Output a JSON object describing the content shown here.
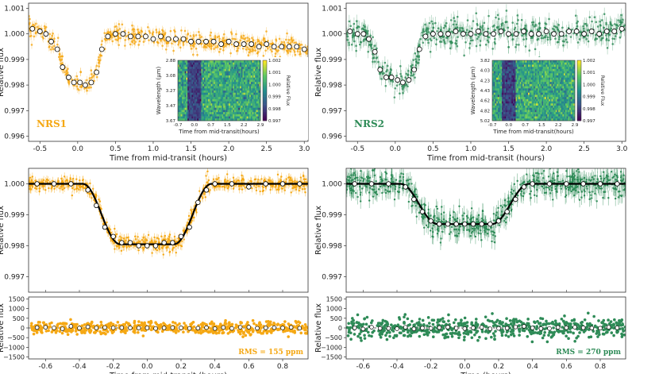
{
  "figure": {
    "colors": {
      "nrs1": "#f5a814",
      "nrs2": "#2e8b57",
      "model": "#000000",
      "binned_fill": "#ffffff",
      "binned_edge": "#000000"
    }
  },
  "chart_data": [
    {
      "id": "nrs1_white_light",
      "type": "scatter",
      "label": "NRS1",
      "xlabel": "Time from mid-transit (hours)",
      "ylabel": "Relative flux",
      "xlim": [
        -0.65,
        3.05
      ],
      "ylim": [
        0.9958,
        1.0012
      ],
      "xticks": [
        -0.5,
        0.0,
        0.5,
        1.0,
        1.5,
        2.0,
        2.5,
        3.0
      ],
      "xtick_labels": [
        "-0.5",
        "0.0",
        "0.5",
        "1.0",
        "1.5",
        "2.0",
        "2.5",
        "3.0"
      ],
      "yticks": [
        0.996,
        0.997,
        0.998,
        0.999,
        1.0,
        1.001
      ],
      "ytick_labels": [
        "0.996",
        "0.997",
        "0.998",
        "0.999",
        "1.000",
        "1.001"
      ],
      "series": [
        {
          "name": "binned",
          "x": [
            -0.6,
            -0.5,
            -0.42,
            -0.35,
            -0.27,
            -0.2,
            -0.12,
            -0.05,
            0.03,
            0.1,
            0.18,
            0.25,
            0.32,
            0.4,
            0.5,
            0.6,
            0.7,
            0.8,
            0.9,
            1.0,
            1.1,
            1.2,
            1.3,
            1.4,
            1.5,
            1.6,
            1.7,
            1.8,
            1.9,
            2.0,
            2.1,
            2.2,
            2.3,
            2.4,
            2.5,
            2.6,
            2.7,
            2.8,
            2.9,
            3.0
          ],
          "y": [
            1.0002,
            1.0001,
            1.0,
            0.9997,
            0.9994,
            0.9987,
            0.9983,
            0.9981,
            0.9981,
            0.998,
            0.9981,
            0.9985,
            0.9994,
            0.9999,
            1.0,
            1.0,
            0.9999,
            0.9999,
            0.9999,
            0.9998,
            0.9999,
            0.9998,
            0.9998,
            0.9998,
            0.9997,
            0.9997,
            0.9997,
            0.9997,
            0.9996,
            0.9997,
            0.9996,
            0.9996,
            0.9996,
            0.9995,
            0.9996,
            0.9995,
            0.9995,
            0.9995,
            0.9995,
            0.9994
          ]
        }
      ]
    },
    {
      "id": "nrs1_spectral_map",
      "type": "heatmap",
      "xlabel": "Time from mid-transit(hours)",
      "ylabel": "Wavelength (μm)",
      "colorbar_label": "Relative Flux",
      "xtick_labels": [
        "-0.7",
        "0.0",
        "0.7",
        "1.5",
        "2.2",
        "2.9"
      ],
      "ytick_labels": [
        "2.88",
        "3.08",
        "3.27",
        "3.47",
        "3.67"
      ],
      "colorbar_ticks": [
        "1.002",
        "1.001",
        "1.000",
        "0.999",
        "0.998",
        "0.997"
      ],
      "clim": [
        0.997,
        1.002
      ],
      "transit_x_range": [
        -0.3,
        0.3
      ]
    },
    {
      "id": "nrs2_white_light",
      "type": "scatter",
      "label": "NRS2",
      "xlabel": "Time from mid-transit (hours)",
      "ylabel": "Relative flux",
      "xlim": [
        -0.65,
        3.05
      ],
      "ylim": [
        0.9958,
        1.0012
      ],
      "xticks": [
        -0.5,
        0.0,
        0.5,
        1.0,
        1.5,
        2.0,
        2.5,
        3.0
      ],
      "xtick_labels": [
        "-0.5",
        "0.0",
        "0.5",
        "1.0",
        "1.5",
        "2.0",
        "2.5",
        "3.0"
      ],
      "yticks": [
        0.996,
        0.997,
        0.998,
        0.999,
        1.0,
        1.001
      ],
      "ytick_labels": [
        "0.996",
        "0.997",
        "0.998",
        "0.999",
        "1.000",
        "1.001"
      ],
      "series": [
        {
          "name": "binned",
          "x": [
            -0.6,
            -0.5,
            -0.42,
            -0.35,
            -0.27,
            -0.2,
            -0.12,
            -0.05,
            0.03,
            0.1,
            0.18,
            0.25,
            0.32,
            0.4,
            0.5,
            0.6,
            0.7,
            0.8,
            0.9,
            1.0,
            1.1,
            1.2,
            1.3,
            1.4,
            1.5,
            1.6,
            1.7,
            1.8,
            1.9,
            2.0,
            2.1,
            2.2,
            2.3,
            2.4,
            2.5,
            2.6,
            2.7,
            2.8,
            2.9,
            3.0
          ],
          "y": [
            1.0001,
            1.0,
            1.0,
            0.9998,
            0.9993,
            0.9986,
            0.9983,
            0.9983,
            0.9982,
            0.9981,
            0.9982,
            0.9986,
            0.9994,
            0.9999,
            1.0,
            1.0,
            1.0,
            1.0001,
            1.0,
            1.0,
            1.0001,
            1.0,
            1.0,
            1.0001,
            1.0,
            1.0,
            1.0001,
            1.0,
            1.0,
            1.0001,
            1.0,
            1.0,
            1.0001,
            1.0001,
            1.0,
            1.0001,
            1.0,
            1.0001,
            1.0001,
            1.0002
          ]
        }
      ]
    },
    {
      "id": "nrs2_spectral_map",
      "type": "heatmap",
      "xlabel": "Time from mid-transit(hours)",
      "ylabel": "Wavelength (μm)",
      "colorbar_label": "Relative Flux",
      "xtick_labels": [
        "-0.7",
        "0.0",
        "0.7",
        "1.5",
        "2.2",
        "2.9"
      ],
      "ytick_labels": [
        "3.82",
        "4.03",
        "4.23",
        "4.43",
        "4.62",
        "4.82",
        "5.02"
      ],
      "colorbar_ticks": [
        "1.002",
        "1.001",
        "1.000",
        "0.999",
        "0.998",
        "0.997"
      ],
      "clim": [
        0.997,
        1.002
      ],
      "transit_x_range": [
        -0.3,
        0.3
      ]
    },
    {
      "id": "nrs1_fit",
      "type": "scatter",
      "xlabel": "",
      "ylabel": "Relative flux",
      "xlim": [
        -0.7,
        0.95
      ],
      "ylim": [
        0.9965,
        1.0005
      ],
      "yticks": [
        0.997,
        0.998,
        0.999,
        1.0
      ],
      "ytick_labels": [
        "0.997",
        "0.998",
        "0.999",
        "1.000"
      ],
      "model": {
        "depth": 0.00195,
        "t_ingress_start": -0.38,
        "t_ingress_end": -0.16,
        "t_egress_start": 0.16,
        "t_egress_end": 0.38
      },
      "series": [
        {
          "name": "binned",
          "x": [
            -0.65,
            -0.55,
            -0.45,
            -0.35,
            -0.3,
            -0.25,
            -0.2,
            -0.15,
            -0.1,
            -0.05,
            0.0,
            0.05,
            0.1,
            0.15,
            0.2,
            0.25,
            0.3,
            0.35,
            0.4,
            0.5,
            0.6,
            0.7,
            0.8,
            0.9
          ],
          "y": [
            1.0,
            1.0,
            1.0,
            0.9998,
            0.9993,
            0.9986,
            0.9983,
            0.9981,
            0.9981,
            0.998,
            0.998,
            0.998,
            0.9981,
            0.9981,
            0.9983,
            0.9986,
            0.9994,
            0.9998,
            1.0,
            1.0,
            0.9999,
            1.0,
            1.0,
            1.0
          ]
        }
      ]
    },
    {
      "id": "nrs1_residuals",
      "type": "scatter",
      "xlabel": "Time from mid-transit (hours)",
      "ylabel": "Relative flux",
      "xlim": [
        -0.7,
        0.95
      ],
      "ylim": [
        -1600,
        1600
      ],
      "xticks": [
        -0.6,
        -0.4,
        -0.2,
        0.0,
        0.2,
        0.4,
        0.6,
        0.8
      ],
      "xtick_labels": [
        "-0.6",
        "-0.4",
        "-0.2",
        "0.0",
        "0.2",
        "0.4",
        "0.6",
        "0.8"
      ],
      "yticks": [
        1500,
        1000,
        500,
        0,
        -500,
        -1000,
        -1500
      ],
      "ytick_labels": [
        "1500",
        "1000",
        "500",
        "0",
        "−500",
        "−1000",
        "−1500"
      ],
      "annotation": "RMS = 155 ppm",
      "rms_ppm": 155
    },
    {
      "id": "nrs2_fit",
      "type": "scatter",
      "xlabel": "",
      "ylabel": "Relative flux",
      "xlim": [
        -0.7,
        0.95
      ],
      "ylim": [
        0.9965,
        1.0005
      ],
      "yticks": [
        0.997,
        0.998,
        0.999,
        1.0
      ],
      "ytick_labels": [
        "0.997",
        "0.998",
        "0.999",
        "1.000"
      ],
      "model": {
        "depth": 0.0013,
        "t_ingress_start": -0.38,
        "t_ingress_end": -0.16,
        "t_egress_start": 0.16,
        "t_egress_end": 0.38
      },
      "series": [
        {
          "name": "binned",
          "x": [
            -0.65,
            -0.55,
            -0.45,
            -0.35,
            -0.3,
            -0.25,
            -0.2,
            -0.15,
            -0.1,
            -0.05,
            0.0,
            0.05,
            0.1,
            0.15,
            0.2,
            0.25,
            0.3,
            0.35,
            0.4,
            0.5,
            0.6,
            0.7,
            0.8,
            0.9
          ],
          "y": [
            1.0,
            1.0,
            1.0,
            0.9999,
            0.9995,
            0.9991,
            0.9988,
            0.9987,
            0.9987,
            0.9987,
            0.9987,
            0.9987,
            0.9987,
            0.9987,
            0.9988,
            0.9991,
            0.9995,
            0.9999,
            1.0,
            1.0,
            1.0,
            1.0,
            1.0,
            1.0
          ]
        }
      ]
    },
    {
      "id": "nrs2_residuals",
      "type": "scatter",
      "xlabel": "Time (hours)",
      "ylabel": "Relative flux",
      "xlim": [
        -0.7,
        0.95
      ],
      "ylim": [
        -1600,
        1600
      ],
      "xticks": [
        -0.6,
        -0.4,
        -0.2,
        0.0,
        0.2,
        0.4,
        0.6,
        0.8
      ],
      "xtick_labels": [
        "-0.6",
        "-0.4",
        "-0.2",
        "0.0",
        "0.2",
        "0.4",
        "0.6",
        "0.8"
      ],
      "yticks": [
        1500,
        1000,
        500,
        0,
        -500,
        -1000,
        -1500
      ],
      "ytick_labels": [
        "1500",
        "1000",
        "500",
        "0",
        "−500",
        "−1000",
        "−1500"
      ],
      "annotation": "RMS = 270 ppm",
      "rms_ppm": 270
    }
  ]
}
